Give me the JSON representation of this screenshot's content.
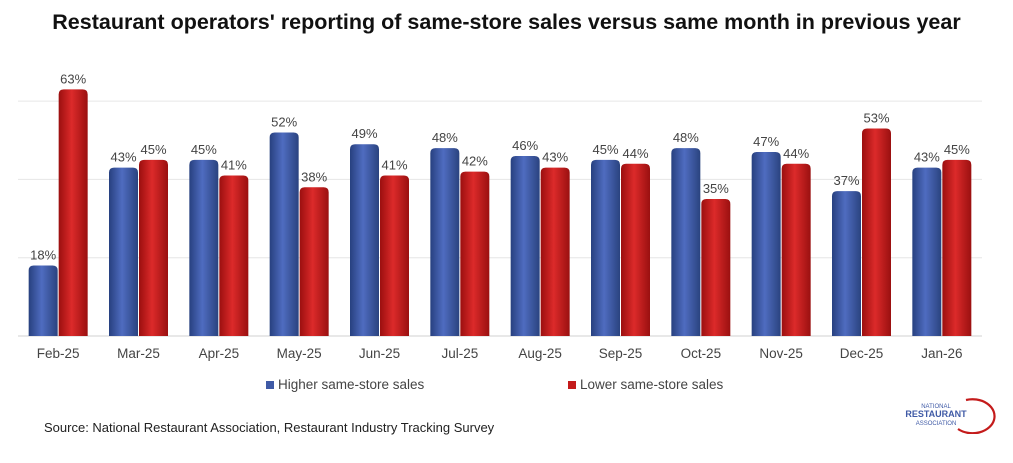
{
  "title": "Restaurant operators' reporting of same-store sales versus same month in previous year",
  "source": "Source: National Restaurant Association, Restaurant Industry Tracking Survey",
  "logo": {
    "line1": "NATIONAL",
    "line2": "RESTAURANT",
    "line3": "ASSOCIATION"
  },
  "colors": {
    "higher": "#3f5aa6",
    "lower": "#c41b1b",
    "grid": "#e6e6e6"
  },
  "chart_data": {
    "type": "bar",
    "title": "Restaurant operators' reporting of same-store sales versus same month in previous year",
    "xlabel": "",
    "ylabel": "",
    "ylim": [
      0,
      70
    ],
    "grid": true,
    "legend_position": "bottom",
    "categories": [
      "Feb-25",
      "Mar-25",
      "Apr-25",
      "May-25",
      "Jun-25",
      "Jul-25",
      "Aug-25",
      "Sep-25",
      "Oct-25",
      "Nov-25",
      "Dec-25",
      "Jan-26"
    ],
    "series": [
      {
        "name": "Higher same-store sales",
        "values": [
          18,
          43,
          45,
          52,
          49,
          48,
          46,
          45,
          48,
          47,
          37,
          43
        ],
        "labels": [
          "18%",
          "43%",
          "45%",
          "52%",
          "49%",
          "48%",
          "46%",
          "45%",
          "48%",
          "47%",
          "37%",
          "43%"
        ]
      },
      {
        "name": "Lower same-store sales",
        "values": [
          63,
          45,
          41,
          38,
          41,
          42,
          43,
          44,
          35,
          44,
          53,
          45
        ],
        "labels": [
          "63%",
          "45%",
          "41%",
          "38%",
          "41%",
          "42%",
          "43%",
          "44%",
          "35%",
          "44%",
          "53%",
          "45%"
        ]
      }
    ]
  }
}
